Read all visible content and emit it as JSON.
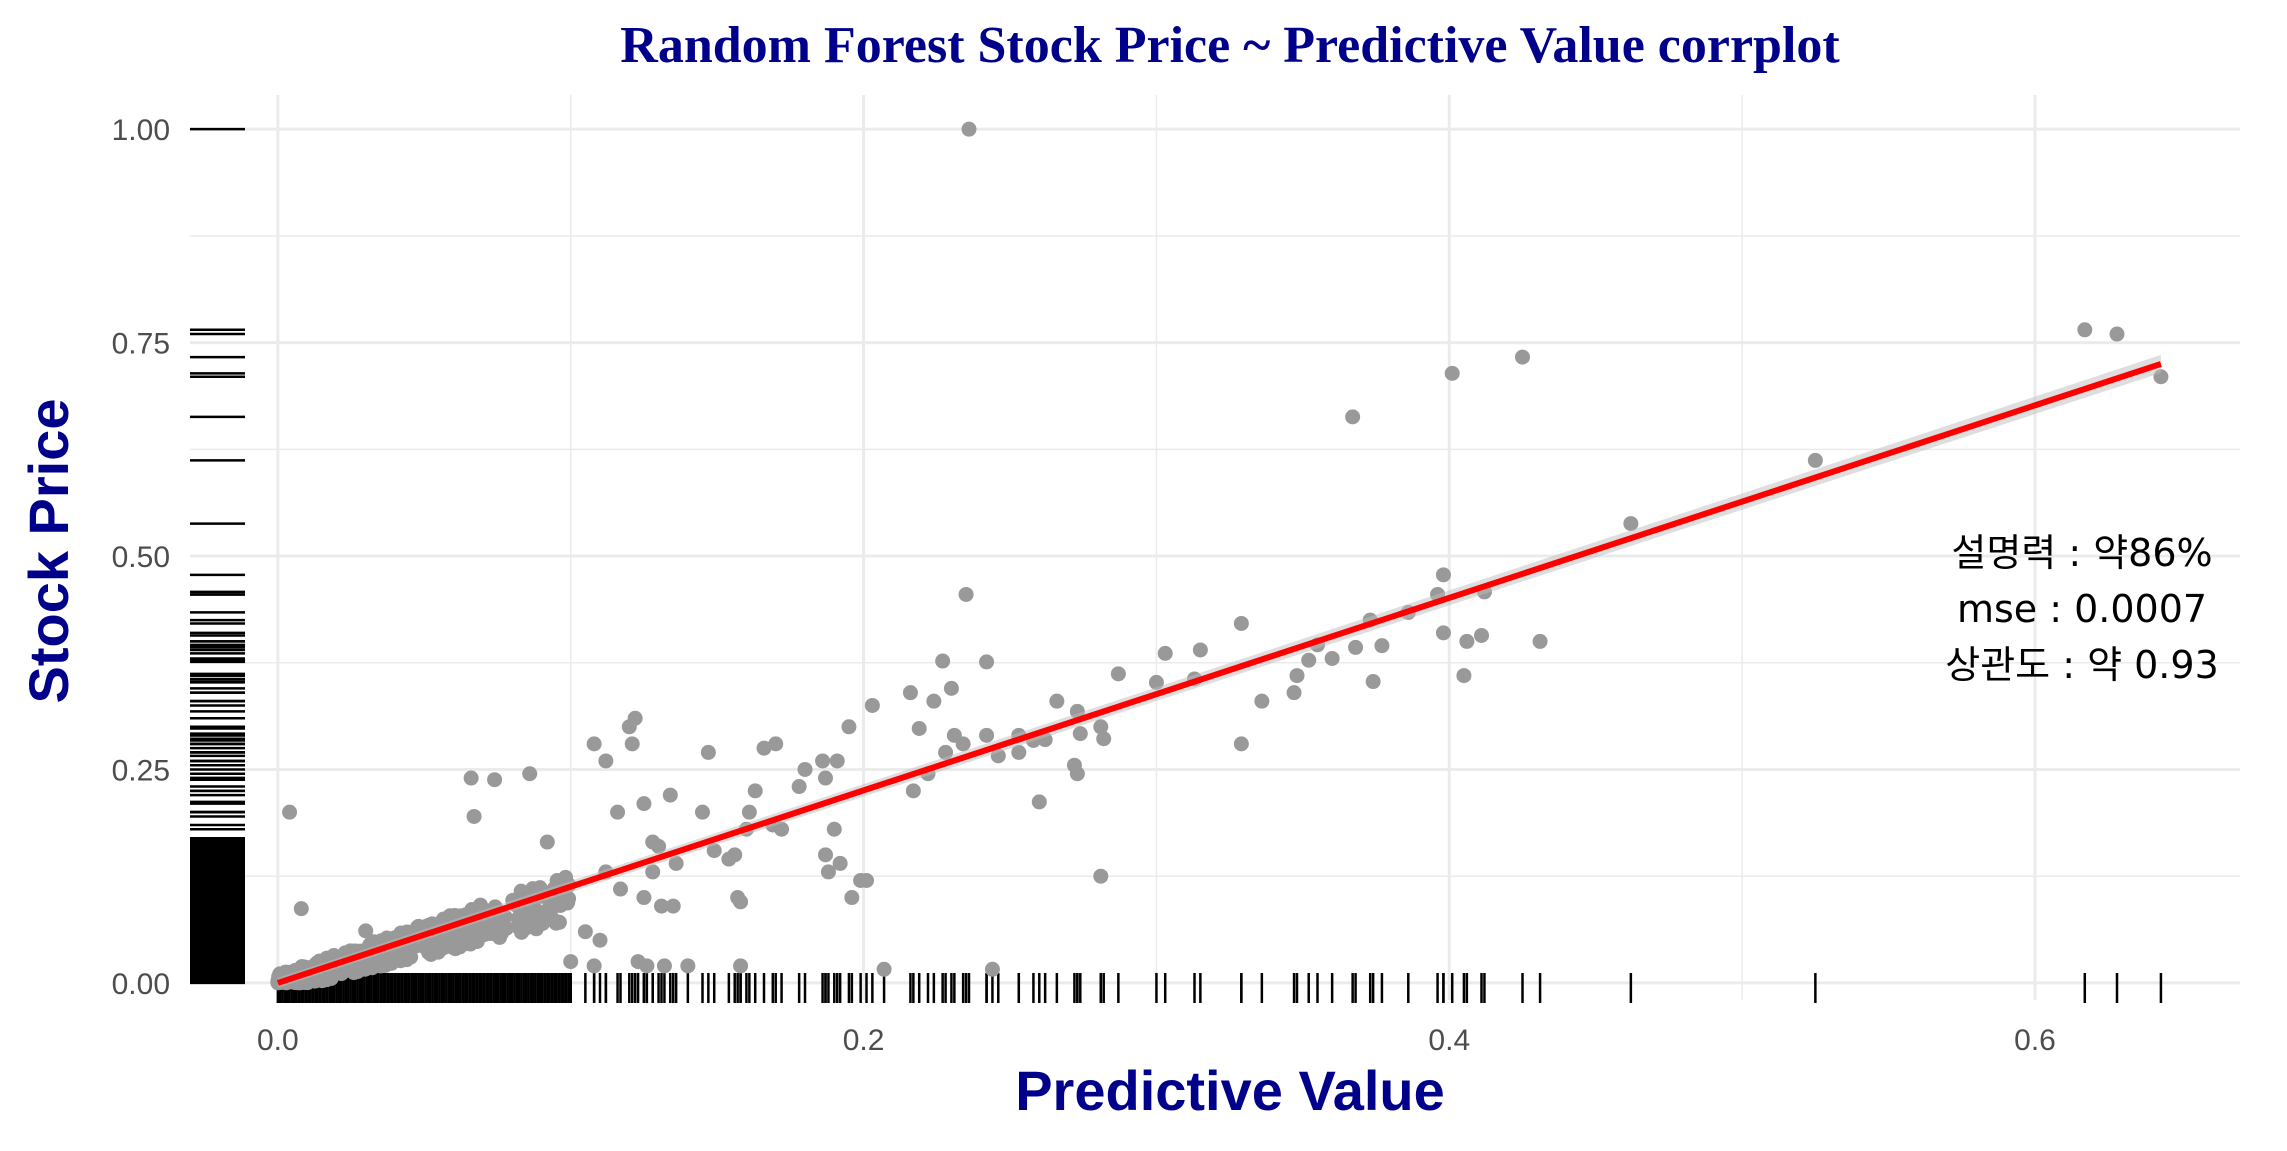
{
  "chart_data": {
    "type": "scatter",
    "title": "Random Forest Stock Price ~ Predictive Value corrplot",
    "xlabel": "Predictive Value",
    "ylabel": "Stock Price",
    "xlim": [
      -0.03,
      0.67
    ],
    "ylim": [
      -0.02,
      1.04
    ],
    "x_ticks": [
      0.0,
      0.2,
      0.4,
      0.6
    ],
    "x_tick_labels": [
      "0.0",
      "0.2",
      "0.4",
      "0.6"
    ],
    "y_ticks": [
      0.0,
      0.25,
      0.5,
      0.75,
      1.0
    ],
    "y_tick_labels": [
      "0.00",
      "0.25",
      "0.50",
      "0.75",
      "1.00"
    ],
    "grid": true,
    "rug": true,
    "annotations": [
      "설명력 : 약86%",
      "mse : 0.0007",
      "상관도 : 약 0.93"
    ],
    "colors": {
      "title": "#00008B",
      "axis_title": "#00008B",
      "points": "#999999",
      "fit_line": "#FF0000",
      "rug": "#000000",
      "grid": "#EBEBEB"
    },
    "fit_line": {
      "x": [
        0.0,
        0.643
      ],
      "y": [
        0.0,
        0.725
      ]
    },
    "series": [
      {
        "points": [
          [
            0.236,
            1.0
          ],
          [
            0.617,
            0.765
          ],
          [
            0.628,
            0.76
          ],
          [
            0.643,
            0.71
          ],
          [
            0.425,
            0.733
          ],
          [
            0.401,
            0.714
          ],
          [
            0.367,
            0.663
          ],
          [
            0.525,
            0.612
          ],
          [
            0.462,
            0.538
          ],
          [
            0.398,
            0.478
          ],
          [
            0.396,
            0.455
          ],
          [
            0.412,
            0.458
          ],
          [
            0.373,
            0.425
          ],
          [
            0.386,
            0.434
          ],
          [
            0.329,
            0.421
          ],
          [
            0.431,
            0.4
          ],
          [
            0.411,
            0.407
          ],
          [
            0.406,
            0.4
          ],
          [
            0.398,
            0.41
          ],
          [
            0.368,
            0.393
          ],
          [
            0.355,
            0.396
          ],
          [
            0.352,
            0.378
          ],
          [
            0.377,
            0.395
          ],
          [
            0.36,
            0.38
          ],
          [
            0.303,
            0.386
          ],
          [
            0.315,
            0.39
          ],
          [
            0.313,
            0.356
          ],
          [
            0.3,
            0.352
          ],
          [
            0.374,
            0.353
          ],
          [
            0.405,
            0.36
          ],
          [
            0.348,
            0.36
          ],
          [
            0.347,
            0.34
          ],
          [
            0.336,
            0.33
          ],
          [
            0.329,
            0.28
          ],
          [
            0.287,
            0.362
          ],
          [
            0.281,
            0.3
          ],
          [
            0.266,
            0.33
          ],
          [
            0.282,
            0.286
          ],
          [
            0.273,
            0.318
          ],
          [
            0.274,
            0.292
          ],
          [
            0.235,
            0.455
          ],
          [
            0.242,
            0.376
          ],
          [
            0.227,
            0.377
          ],
          [
            0.216,
            0.34
          ],
          [
            0.224,
            0.33
          ],
          [
            0.219,
            0.298
          ],
          [
            0.23,
            0.345
          ],
          [
            0.231,
            0.29
          ],
          [
            0.242,
            0.29
          ],
          [
            0.258,
            0.284
          ],
          [
            0.253,
            0.29
          ],
          [
            0.262,
            0.285
          ],
          [
            0.246,
            0.266
          ],
          [
            0.253,
            0.27
          ],
          [
            0.222,
            0.245
          ],
          [
            0.217,
            0.225
          ],
          [
            0.228,
            0.27
          ],
          [
            0.234,
            0.28
          ],
          [
            0.26,
            0.212
          ],
          [
            0.272,
            0.255
          ],
          [
            0.273,
            0.245
          ],
          [
            0.281,
            0.125
          ],
          [
            0.244,
            0.016
          ],
          [
            0.203,
            0.325
          ],
          [
            0.195,
            0.3
          ],
          [
            0.191,
            0.26
          ],
          [
            0.186,
            0.26
          ],
          [
            0.18,
            0.25
          ],
          [
            0.178,
            0.23
          ],
          [
            0.187,
            0.24
          ],
          [
            0.172,
            0.18
          ],
          [
            0.169,
            0.185
          ],
          [
            0.163,
            0.225
          ],
          [
            0.166,
            0.275
          ],
          [
            0.17,
            0.28
          ],
          [
            0.19,
            0.18
          ],
          [
            0.192,
            0.14
          ],
          [
            0.201,
            0.12
          ],
          [
            0.199,
            0.12
          ],
          [
            0.188,
            0.13
          ],
          [
            0.187,
            0.15
          ],
          [
            0.196,
            0.1
          ],
          [
            0.207,
            0.016
          ],
          [
            0.161,
            0.2
          ],
          [
            0.156,
            0.15
          ],
          [
            0.16,
            0.18
          ],
          [
            0.147,
            0.27
          ],
          [
            0.145,
            0.2
          ],
          [
            0.149,
            0.155
          ],
          [
            0.154,
            0.145
          ],
          [
            0.157,
            0.1
          ],
          [
            0.158,
            0.095
          ],
          [
            0.158,
            0.02
          ],
          [
            0.132,
            0.02
          ],
          [
            0.14,
            0.02
          ],
          [
            0.126,
            0.02
          ],
          [
            0.12,
            0.3
          ],
          [
            0.121,
            0.28
          ],
          [
            0.122,
            0.31
          ],
          [
            0.112,
            0.26
          ],
          [
            0.108,
            0.28
          ],
          [
            0.134,
            0.22
          ],
          [
            0.125,
            0.21
          ],
          [
            0.116,
            0.2
          ],
          [
            0.13,
            0.16
          ],
          [
            0.136,
            0.14
          ],
          [
            0.128,
            0.13
          ],
          [
            0.131,
            0.09
          ],
          [
            0.135,
            0.09
          ],
          [
            0.125,
            0.1
          ],
          [
            0.128,
            0.165
          ],
          [
            0.117,
            0.11
          ],
          [
            0.112,
            0.13
          ],
          [
            0.11,
            0.05
          ],
          [
            0.105,
            0.06
          ],
          [
            0.1,
            0.025
          ],
          [
            0.108,
            0.02
          ],
          [
            0.123,
            0.025
          ],
          [
            0.092,
            0.165
          ],
          [
            0.086,
            0.245
          ],
          [
            0.066,
            0.24
          ],
          [
            0.074,
            0.238
          ],
          [
            0.067,
            0.195
          ],
          [
            0.004,
            0.2
          ],
          [
            0.008,
            0.087
          ],
          [
            0.03,
            0.061
          ],
          [
            0.089,
            0.11
          ],
          [
            0.095,
            0.07
          ],
          [
            0.099,
            0.095
          ]
        ]
      }
    ],
    "dense_cluster": {
      "x_range": [
        0.0,
        0.1
      ],
      "y_at_x0": 0.0,
      "slope": 1.0
    }
  }
}
